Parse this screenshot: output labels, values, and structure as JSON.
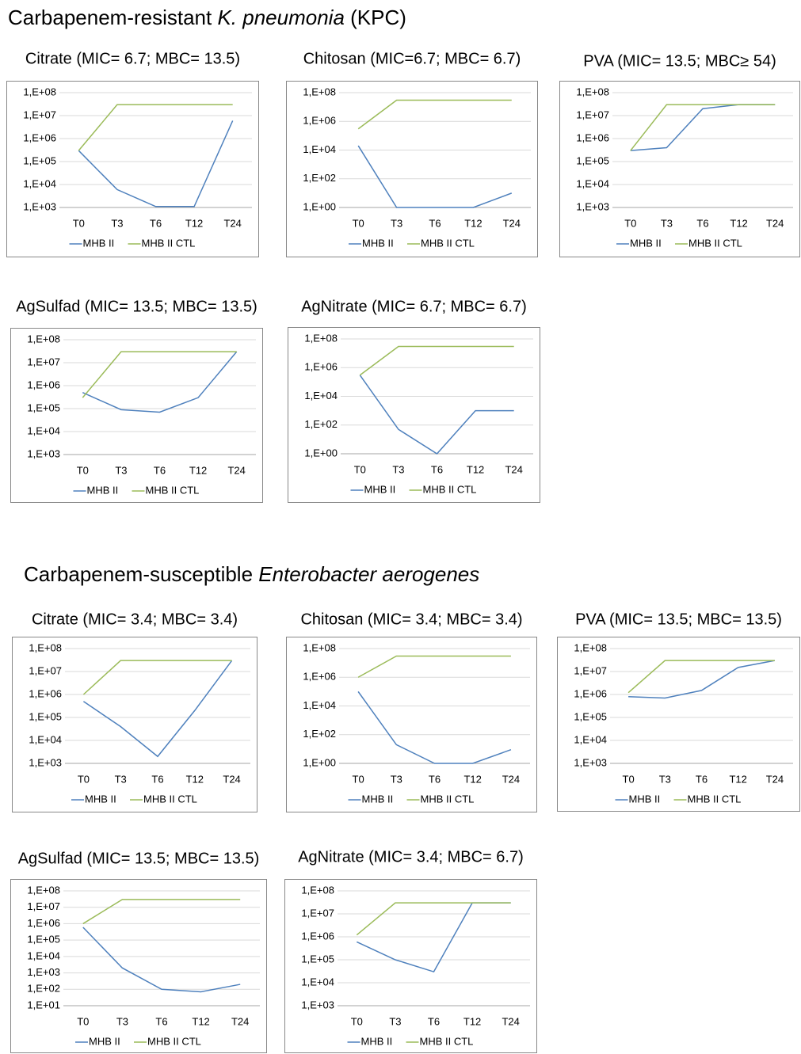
{
  "sections": [
    [
      "Carbapenem-resistant ",
      "K. pneumonia",
      " (KPC)"
    ],
    [
      "Carbapenem-susceptible ",
      "Enterobacter aerogenes"
    ]
  ],
  "chart_data": [
    {
      "type": "line",
      "title": "Citrate (MIC= 6.7; MBC= 13.5)",
      "log_y": true,
      "grid": true,
      "legend": "bottom",
      "categories": [
        "T0",
        "T3",
        "T6",
        "T12",
        "T24"
      ],
      "ylim": [
        1000,
        100000000
      ],
      "yticks": [
        {
          "value": 1000,
          "label": "1,E+03"
        },
        {
          "value": 10000,
          "label": "1,E+04"
        },
        {
          "value": 100000,
          "label": "1,E+05"
        },
        {
          "value": 1000000,
          "label": "1,E+06"
        },
        {
          "value": 10000000,
          "label": "1,E+07"
        },
        {
          "value": 100000000,
          "label": "1,E+08"
        }
      ],
      "series": [
        {
          "name": "MHB II",
          "color": "#4f81bd",
          "values": [
            300000,
            6000,
            1100,
            1100,
            6000000
          ]
        },
        {
          "name": "MHB II CTL",
          "color": "#9bbb59",
          "values": [
            300000,
            30000000,
            30000000,
            30000000,
            30000000
          ]
        }
      ]
    },
    {
      "type": "line",
      "title": "Chitosan (MIC=6.7; MBC= 6.7)",
      "log_y": true,
      "grid": true,
      "legend": "bottom",
      "categories": [
        "T0",
        "T3",
        "T6",
        "T12",
        "T24"
      ],
      "ylim": [
        1,
        100000000
      ],
      "yticks": [
        {
          "value": 1,
          "label": "1,E+00"
        },
        {
          "value": 100,
          "label": "1,E+02"
        },
        {
          "value": 10000,
          "label": "1,E+04"
        },
        {
          "value": 1000000,
          "label": "1,E+06"
        },
        {
          "value": 100000000,
          "label": "1,E+08"
        }
      ],
      "series": [
        {
          "name": "MHB II",
          "color": "#4f81bd",
          "values": [
            20000,
            1,
            1,
            1,
            10
          ]
        },
        {
          "name": "MHB II CTL",
          "color": "#9bbb59",
          "values": [
            300000,
            30000000,
            30000000,
            30000000,
            30000000
          ]
        }
      ]
    },
    {
      "type": "line",
      "title": "PVA (MIC= 13.5; MBC≥ 54)",
      "log_y": true,
      "grid": true,
      "legend": "bottom",
      "categories": [
        "T0",
        "T3",
        "T6",
        "T12",
        "T24"
      ],
      "ylim": [
        1000,
        100000000
      ],
      "yticks": [
        {
          "value": 1000,
          "label": "1,E+03"
        },
        {
          "value": 10000,
          "label": "1,E+04"
        },
        {
          "value": 100000,
          "label": "1,E+05"
        },
        {
          "value": 1000000,
          "label": "1,E+06"
        },
        {
          "value": 10000000,
          "label": "1,E+07"
        },
        {
          "value": 100000000,
          "label": "1,E+08"
        }
      ],
      "series": [
        {
          "name": "MHB II",
          "color": "#4f81bd",
          "values": [
            300000,
            400000,
            20000000,
            30000000,
            30000000
          ]
        },
        {
          "name": "MHB II CTL",
          "color": "#9bbb59",
          "values": [
            300000,
            30000000,
            30000000,
            30000000,
            30000000
          ]
        }
      ]
    },
    {
      "type": "line",
      "title": "AgSulfad (MIC= 13.5; MBC= 13.5)",
      "log_y": true,
      "grid": true,
      "legend": "bottom",
      "categories": [
        "T0",
        "T3",
        "T6",
        "T12",
        "T24"
      ],
      "ylim": [
        1000,
        100000000
      ],
      "yticks": [
        {
          "value": 1000,
          "label": "1,E+03"
        },
        {
          "value": 10000,
          "label": "1,E+04"
        },
        {
          "value": 100000,
          "label": "1,E+05"
        },
        {
          "value": 1000000,
          "label": "1,E+06"
        },
        {
          "value": 10000000,
          "label": "1,E+07"
        },
        {
          "value": 100000000,
          "label": "1,E+08"
        }
      ],
      "series": [
        {
          "name": "MHB II",
          "color": "#4f81bd",
          "values": [
            500000,
            90000,
            70000,
            300000,
            30000000
          ]
        },
        {
          "name": "MHB II CTL",
          "color": "#9bbb59",
          "values": [
            300000,
            30000000,
            30000000,
            30000000,
            30000000
          ]
        }
      ]
    },
    {
      "type": "line",
      "title": "AgNitrate (MIC= 6.7; MBC= 6.7)",
      "log_y": true,
      "grid": true,
      "legend": "bottom",
      "categories": [
        "T0",
        "T3",
        "T6",
        "T12",
        "T24"
      ],
      "ylim": [
        1,
        100000000
      ],
      "yticks": [
        {
          "value": 1,
          "label": "1,E+00"
        },
        {
          "value": 100,
          "label": "1,E+02"
        },
        {
          "value": 10000,
          "label": "1,E+04"
        },
        {
          "value": 1000000,
          "label": "1,E+06"
        },
        {
          "value": 100000000,
          "label": "1,E+08"
        }
      ],
      "series": [
        {
          "name": "MHB II",
          "color": "#4f81bd",
          "values": [
            300000,
            50,
            1,
            1000,
            1000
          ]
        },
        {
          "name": "MHB II CTL",
          "color": "#9bbb59",
          "values": [
            300000,
            30000000,
            30000000,
            30000000,
            30000000
          ]
        }
      ]
    },
    {
      "type": "line",
      "title": "Citrate (MIC= 3.4; MBC= 3.4)",
      "log_y": true,
      "grid": true,
      "legend": "bottom",
      "categories": [
        "T0",
        "T3",
        "T6",
        "T12",
        "T24"
      ],
      "ylim": [
        1000,
        100000000
      ],
      "yticks": [
        {
          "value": 1000,
          "label": "1,E+03"
        },
        {
          "value": 10000,
          "label": "1,E+04"
        },
        {
          "value": 100000,
          "label": "1,E+05"
        },
        {
          "value": 1000000,
          "label": "1,E+06"
        },
        {
          "value": 10000000,
          "label": "1,E+07"
        },
        {
          "value": 100000000,
          "label": "1,E+08"
        }
      ],
      "series": [
        {
          "name": "MHB II",
          "color": "#4f81bd",
          "values": [
            500000,
            40000,
            2000,
            200000,
            30000000
          ]
        },
        {
          "name": "MHB II CTL",
          "color": "#9bbb59",
          "values": [
            1000000,
            30000000,
            30000000,
            30000000,
            30000000
          ]
        }
      ]
    },
    {
      "type": "line",
      "title": "Chitosan (MIC= 3.4; MBC= 3.4)",
      "log_y": true,
      "grid": true,
      "legend": "bottom",
      "categories": [
        "T0",
        "T3",
        "T6",
        "T12",
        "T24"
      ],
      "ylim": [
        1,
        100000000
      ],
      "yticks": [
        {
          "value": 1,
          "label": "1,E+00"
        },
        {
          "value": 100,
          "label": "1,E+02"
        },
        {
          "value": 10000,
          "label": "1,E+04"
        },
        {
          "value": 1000000,
          "label": "1,E+06"
        },
        {
          "value": 100000000,
          "label": "1,E+08"
        }
      ],
      "series": [
        {
          "name": "MHB II",
          "color": "#4f81bd",
          "values": [
            100000,
            20,
            1,
            1,
            9
          ]
        },
        {
          "name": "MHB II CTL",
          "color": "#9bbb59",
          "values": [
            1000000,
            30000000,
            30000000,
            30000000,
            30000000
          ]
        }
      ]
    },
    {
      "type": "line",
      "title": "PVA (MIC= 13.5; MBC= 13.5)",
      "log_y": true,
      "grid": true,
      "legend": "bottom",
      "categories": [
        "T0",
        "T3",
        "T6",
        "T12",
        "T24"
      ],
      "ylim": [
        1000,
        100000000
      ],
      "yticks": [
        {
          "value": 1000,
          "label": "1,E+03"
        },
        {
          "value": 10000,
          "label": "1,E+04"
        },
        {
          "value": 100000,
          "label": "1,E+05"
        },
        {
          "value": 1000000,
          "label": "1,E+06"
        },
        {
          "value": 10000000,
          "label": "1,E+07"
        },
        {
          "value": 100000000,
          "label": "1,E+08"
        }
      ],
      "series": [
        {
          "name": "MHB II",
          "color": "#4f81bd",
          "values": [
            800000,
            700000,
            1500000,
            15000000,
            30000000
          ]
        },
        {
          "name": "MHB II CTL",
          "color": "#9bbb59",
          "values": [
            1200000,
            30000000,
            30000000,
            30000000,
            30000000
          ]
        }
      ]
    },
    {
      "type": "line",
      "title": "AgSulfad (MIC= 13.5; MBC= 13.5)",
      "log_y": true,
      "grid": true,
      "legend": "bottom",
      "categories": [
        "T0",
        "T3",
        "T6",
        "T12",
        "T24"
      ],
      "ylim": [
        10,
        100000000
      ],
      "yticks": [
        {
          "value": 10,
          "label": "1,E+01"
        },
        {
          "value": 100,
          "label": "1,E+02"
        },
        {
          "value": 1000,
          "label": "1,E+03"
        },
        {
          "value": 10000,
          "label": "1,E+04"
        },
        {
          "value": 100000,
          "label": "1,E+05"
        },
        {
          "value": 1000000,
          "label": "1,E+06"
        },
        {
          "value": 10000000,
          "label": "1,E+07"
        },
        {
          "value": 100000000,
          "label": "1,E+08"
        }
      ],
      "series": [
        {
          "name": "MHB II",
          "color": "#4f81bd",
          "values": [
            600000,
            2000,
            100,
            70,
            200
          ]
        },
        {
          "name": "MHB II CTL",
          "color": "#9bbb59",
          "values": [
            1000000,
            30000000,
            30000000,
            30000000,
            30000000
          ]
        }
      ]
    },
    {
      "type": "line",
      "title": "AgNitrate (MIC= 3.4; MBC= 6.7)",
      "log_y": true,
      "grid": true,
      "legend": "bottom",
      "categories": [
        "T0",
        "T3",
        "T6",
        "T12",
        "T24"
      ],
      "ylim": [
        1000,
        100000000
      ],
      "yticks": [
        {
          "value": 1000,
          "label": "1,E+03"
        },
        {
          "value": 10000,
          "label": "1,E+04"
        },
        {
          "value": 100000,
          "label": "1,E+05"
        },
        {
          "value": 1000000,
          "label": "1,E+06"
        },
        {
          "value": 10000000,
          "label": "1,E+07"
        },
        {
          "value": 100000000,
          "label": "1,E+08"
        }
      ],
      "series": [
        {
          "name": "MHB II",
          "color": "#4f81bd",
          "values": [
            600000,
            100000,
            30000,
            30000000,
            30000000
          ]
        },
        {
          "name": "MHB II CTL",
          "color": "#9bbb59",
          "values": [
            1200000,
            30000000,
            30000000,
            30000000,
            30000000
          ]
        }
      ]
    }
  ]
}
